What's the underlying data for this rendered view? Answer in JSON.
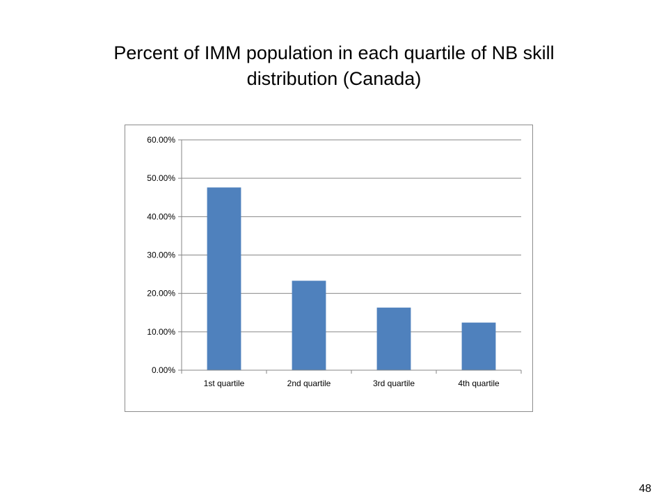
{
  "slide": {
    "title_line1": "Percent of IMM population in each quartile of NB skill",
    "title_line2": "distribution (Canada)",
    "page_number": "48"
  },
  "chart_data": {
    "type": "bar",
    "categories": [
      "1st quartile",
      "2nd quartile",
      "3rd quartile",
      "4th quartile"
    ],
    "values": [
      0.476,
      0.233,
      0.163,
      0.124
    ],
    "ylim": [
      0,
      0.6
    ],
    "yticks": [
      0,
      0.1,
      0.2,
      0.3,
      0.4,
      0.5,
      0.6
    ],
    "ytick_labels": [
      "0.00%",
      "10.00%",
      "20.00%",
      "30.00%",
      "40.00%",
      "50.00%",
      "60.00%"
    ],
    "grid": true,
    "legend": "none",
    "bar_color": "#4f81bd",
    "grid_color": "#868686"
  }
}
